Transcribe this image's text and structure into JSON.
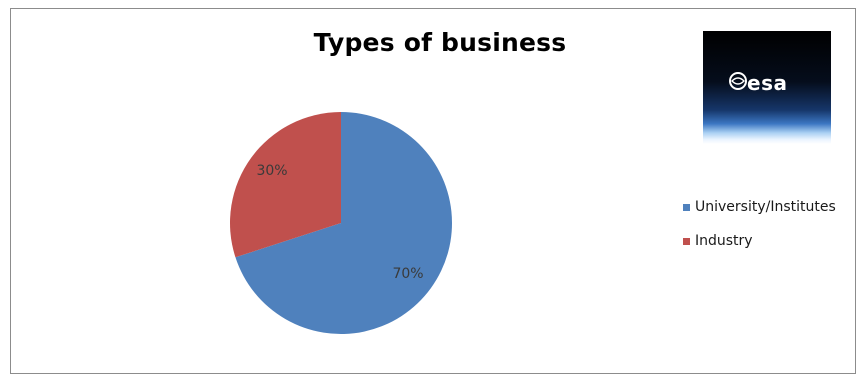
{
  "chart_data": {
    "type": "pie",
    "title": "Types of business",
    "slices": [
      {
        "name": "University/Institutes",
        "value": 70,
        "label": "70%",
        "color": "#4f81bd"
      },
      {
        "name": "Industry",
        "value": 30,
        "label": "30%",
        "color": "#c0504d"
      }
    ],
    "legend_position": "right"
  },
  "logo": {
    "text": "esa"
  }
}
